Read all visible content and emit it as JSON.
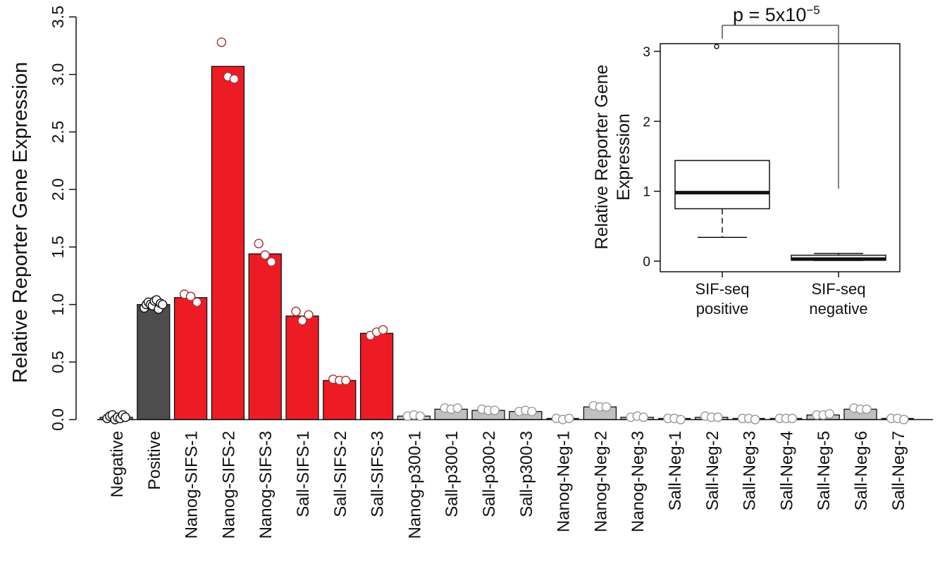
{
  "colors": {
    "control_negative": "#9a9a9a",
    "control_positive": "#4d4d4d",
    "sifs": "#ed1c24",
    "other": "#c0c0c0",
    "point_red_edge": "#a83232",
    "point_gray_edge": "#999999",
    "point_dark_edge": "#111111"
  },
  "chart_data": [
    {
      "type": "bar",
      "ylabel": "Relative Reporter Gene Expression",
      "ylim": [
        0,
        3.5
      ],
      "yticks": [
        "0.0",
        "0.5",
        "1.0",
        "1.5",
        "2.0",
        "2.5",
        "3.0",
        "3.5"
      ],
      "categories": [
        "Negative",
        "Positive",
        "Nanog-SIFS-1",
        "Nanog-SIFS-2",
        "Nanog-SIFS-3",
        "Sall-SIFS-1",
        "Sall-SIFS-2",
        "Sall-SIFS-3",
        "Nanog-p300-1",
        "Sall-p300-1",
        "Sall-p300-2",
        "Sall-p300-3",
        "Nanog-Neg-1",
        "Nanog-Neg-2",
        "Nanog-Neg-3",
        "Sall-Neg-1",
        "Sall-Neg-2",
        "Sall-Neg-3",
        "Sall-Neg-4",
        "Sall-Neg-5",
        "Sall-Neg-6",
        "Sall-Neg-7"
      ],
      "values": [
        0.02,
        1.0,
        1.06,
        3.07,
        1.44,
        0.9,
        0.34,
        0.75,
        0.03,
        0.09,
        0.08,
        0.07,
        0.01,
        0.11,
        0.02,
        0.01,
        0.02,
        0.01,
        0.01,
        0.04,
        0.09,
        0.01
      ],
      "groups": [
        "control_negative",
        "control_positive",
        "sifs",
        "sifs",
        "sifs",
        "sifs",
        "sifs",
        "sifs",
        "other",
        "other",
        "other",
        "other",
        "other",
        "other",
        "other",
        "other",
        "other",
        "other",
        "other",
        "other",
        "other",
        "other"
      ],
      "replicates": [
        [
          0.01,
          0.03,
          0.04,
          0.0,
          0.02,
          0.01,
          0.04,
          0.02
        ],
        [
          0.97,
          1.0,
          1.02,
          1.0,
          0.99,
          1.03,
          1.04,
          0.96,
          1.01,
          1.0
        ],
        [
          1.09,
          1.07,
          1.02
        ],
        [
          3.28,
          2.98,
          2.96
        ],
        [
          1.53,
          1.43,
          1.37
        ],
        [
          0.94,
          0.86,
          0.91
        ],
        [
          0.35,
          0.34,
          0.34
        ],
        [
          0.73,
          0.76,
          0.78
        ],
        [
          0.03,
          0.04,
          0.03
        ],
        [
          0.1,
          0.09,
          0.1
        ],
        [
          0.09,
          0.08,
          0.08
        ],
        [
          0.07,
          0.08,
          0.07
        ],
        [
          0.01,
          0.0,
          0.01
        ],
        [
          0.12,
          0.11,
          0.11
        ],
        [
          0.02,
          0.03,
          0.02
        ],
        [
          0.01,
          0.01,
          0.0
        ],
        [
          0.03,
          0.02,
          0.02
        ],
        [
          0.01,
          0.01,
          0.0
        ],
        [
          0.01,
          0.01,
          0.01
        ],
        [
          0.04,
          0.04,
          0.05
        ],
        [
          0.1,
          0.09,
          0.09
        ],
        [
          0.01,
          0.01,
          0.0
        ]
      ]
    },
    {
      "type": "box",
      "ylabel": "Relative Reporter Gene Expression",
      "ylim": [
        0,
        3.15
      ],
      "yticks": [
        "0",
        "1",
        "2",
        "3"
      ],
      "categories": [
        "SIF-seq positive",
        "SIF-seq negative"
      ],
      "category_lines": [
        [
          "SIF-seq",
          "positive"
        ],
        [
          "SIF-seq",
          "negative"
        ]
      ],
      "boxes": [
        {
          "whisker_low": 0.34,
          "q1": 0.75,
          "median": 0.98,
          "q3": 1.44,
          "whisker_high": 1.44,
          "outliers": [
            3.07
          ]
        },
        {
          "whisker_low": 0.01,
          "q1": 0.015,
          "median": 0.03,
          "q3": 0.085,
          "whisker_high": 0.11,
          "outliers": []
        }
      ],
      "annotation": {
        "text": "p = 5x10",
        "exponent": "−5"
      }
    }
  ]
}
